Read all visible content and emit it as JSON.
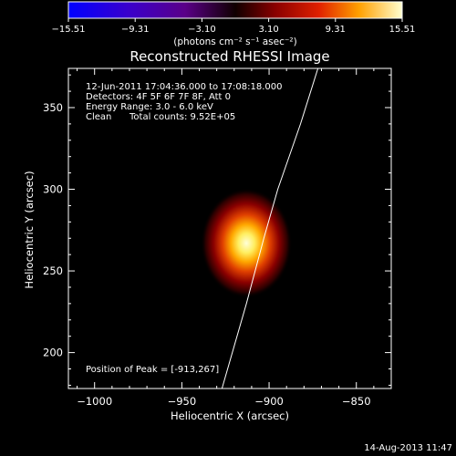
{
  "colorbar": {
    "ticks": [
      "−15.51",
      "−9.31",
      "−3.10",
      "3.10",
      "9.31",
      "15.51"
    ],
    "units": "(photons cm⁻² s⁻¹ asec⁻²)"
  },
  "image": {
    "title": "Reconstructed RHESSI Image",
    "time_range": "12-Jun-2011 17:04:36.000 to 17:08:18.000",
    "detectors": "Detectors: 4F 5F 6F 7F 8F, Att 0",
    "energy_range": "Energy Range: 3.0 - 6.0 keV",
    "clean_label": "Clean",
    "total_counts": "Total counts: 9.52E+05",
    "peak_position": "Position of Peak = [-913,267]",
    "timestamp": "14-Aug-2013 11:47"
  },
  "chart_data": {
    "type": "heatmap",
    "title": "Reconstructed RHESSI Image",
    "xlabel": "Heliocentric X (arcsec)",
    "ylabel": "Heliocentric Y (arcsec)",
    "xlim": [
      -1015,
      -830
    ],
    "ylim": [
      178,
      374
    ],
    "x_ticks": [
      -1000,
      -950,
      -900,
      -850
    ],
    "y_ticks": [
      200,
      250,
      300,
      350
    ],
    "x_tick_labels": [
      "−1000",
      "−950",
      "−900",
      "−850"
    ],
    "y_tick_labels": [
      "200",
      "250",
      "300",
      "350"
    ],
    "colorscale_range": [
      -15.51,
      15.51
    ],
    "peak": {
      "x": -913,
      "y": 267
    },
    "limb_curve": [
      [
        -927,
        178
      ],
      [
        -913,
        230
      ],
      [
        -903,
        270
      ],
      [
        -895,
        300
      ],
      [
        -882,
        340
      ],
      [
        -872,
        374
      ]
    ]
  }
}
